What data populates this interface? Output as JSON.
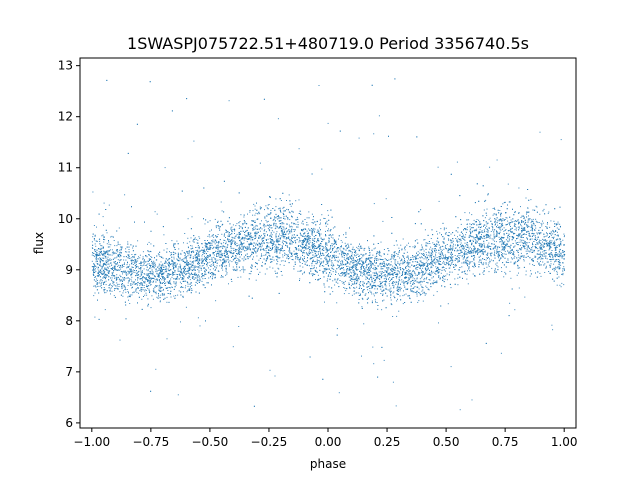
{
  "chart_data": {
    "type": "scatter",
    "title": "1SWASPJ075722.51+480719.0 Period 3356740.5s",
    "xlabel": "phase",
    "ylabel": "flux",
    "xlim": [
      -1.05,
      1.05
    ],
    "ylim": [
      5.9,
      13.15
    ],
    "xticks": [
      -1.0,
      -0.75,
      -0.5,
      -0.25,
      0.0,
      0.25,
      0.5,
      0.75,
      1.0
    ],
    "xtick_labels": [
      "−1.00",
      "−0.75",
      "−0.50",
      "−0.25",
      "0.00",
      "0.25",
      "0.50",
      "0.75",
      "1.00"
    ],
    "yticks": [
      6,
      7,
      8,
      9,
      10,
      11,
      12,
      13
    ],
    "ytick_labels": [
      "6",
      "7",
      "8",
      "9",
      "10",
      "11",
      "12",
      "13"
    ],
    "grid": false,
    "marker_color": "#1f77b4",
    "series": [
      {
        "phase_envelope": {
          "x": [
            -1.0,
            -0.875,
            -0.75,
            -0.625,
            -0.5,
            -0.375,
            -0.25,
            -0.125,
            0.0,
            0.125,
            0.25,
            0.375,
            0.5,
            0.625,
            0.75,
            0.875,
            1.0
          ],
          "center": [
            9.2,
            9.0,
            8.9,
            9.0,
            9.3,
            9.5,
            9.7,
            9.6,
            9.3,
            9.0,
            8.9,
            9.0,
            9.3,
            9.5,
            9.7,
            9.6,
            9.3
          ],
          "upper": [
            10.6,
            10.2,
            10.0,
            10.2,
            10.4,
            10.6,
            10.9,
            10.8,
            10.5,
            10.2,
            10.0,
            10.2,
            10.4,
            10.7,
            10.9,
            10.8,
            10.5
          ],
          "lower": [
            7.9,
            7.8,
            7.6,
            7.8,
            8.0,
            8.1,
            8.0,
            8.0,
            7.9,
            7.8,
            7.6,
            7.8,
            8.0,
            8.1,
            8.0,
            8.0,
            7.9
          ]
        },
        "y_min": 6.15,
        "y_max": 12.8
      }
    ]
  }
}
